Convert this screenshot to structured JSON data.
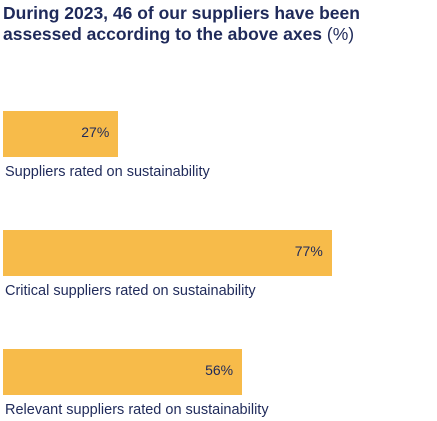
{
  "title": "During 2023, 46 of our suppliers have been assessed according to the above axes",
  "title_unit": "(%)",
  "colors": {
    "bar": "#f7bb4a",
    "text": "#1f2a5a"
  },
  "chart_data": {
    "type": "bar",
    "orientation": "horizontal",
    "categories": [
      "Suppliers rated on sustainability",
      "Critical suppliers rated on sustainability",
      "Relevant suppliers rated on sustainability"
    ],
    "values": [
      27,
      77,
      56
    ],
    "value_labels": [
      "27%",
      "77%",
      "56%"
    ],
    "xlim": [
      0,
      100
    ],
    "grid": false,
    "legend": "none"
  }
}
